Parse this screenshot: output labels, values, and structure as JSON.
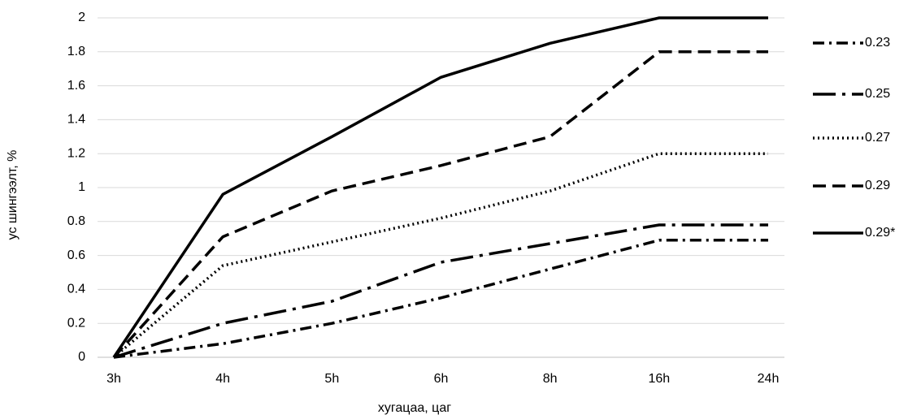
{
  "chart_data": {
    "type": "line",
    "x_label": "хугацаа, цаг",
    "y_label": "ус шингээлт, %",
    "categories": [
      "3h",
      "4h",
      "5h",
      "6h",
      "8h",
      "16h",
      "24h"
    ],
    "ylim": [
      0,
      2
    ],
    "yticks": [
      0,
      0.2,
      0.4,
      0.6,
      0.8,
      1,
      1.2,
      1.4,
      1.6,
      1.8,
      2
    ],
    "grid": true,
    "legend": "right",
    "series": [
      {
        "name": "0.23",
        "color": "#000000",
        "dash": "14,6,3,6",
        "values": [
          0,
          0.08,
          0.2,
          0.35,
          0.52,
          0.69,
          0.69
        ]
      },
      {
        "name": "0.25",
        "color": "#000000",
        "dash": "28,8,4,8",
        "values": [
          0,
          0.2,
          0.33,
          0.56,
          0.67,
          0.78,
          0.78
        ]
      },
      {
        "name": "0.27",
        "color": "#000000",
        "dash": "2,4",
        "values": [
          0,
          0.54,
          0.68,
          0.82,
          0.98,
          1.2,
          1.2
        ]
      },
      {
        "name": "0.29",
        "color": "#000000",
        "dash": "16,8",
        "values": [
          0,
          0.71,
          0.98,
          1.13,
          1.3,
          1.8,
          1.8
        ]
      },
      {
        "name": "0.29*",
        "color": "#000000",
        "dash": "",
        "values": [
          0,
          0.96,
          1.3,
          1.65,
          1.85,
          2,
          2
        ]
      }
    ]
  }
}
